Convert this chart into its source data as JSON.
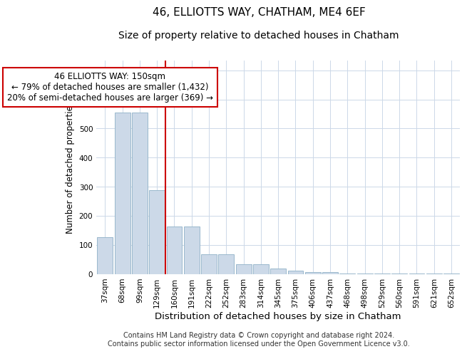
{
  "title1": "46, ELLIOTTS WAY, CHATHAM, ME4 6EF",
  "title2": "Size of property relative to detached houses in Chatham",
  "xlabel": "Distribution of detached houses by size in Chatham",
  "ylabel": "Number of detached properties",
  "categories": [
    "37sqm",
    "68sqm",
    "99sqm",
    "129sqm",
    "160sqm",
    "191sqm",
    "222sqm",
    "252sqm",
    "283sqm",
    "314sqm",
    "345sqm",
    "375sqm",
    "406sqm",
    "437sqm",
    "468sqm",
    "498sqm",
    "529sqm",
    "560sqm",
    "591sqm",
    "621sqm",
    "652sqm"
  ],
  "values": [
    127,
    555,
    555,
    287,
    163,
    163,
    68,
    68,
    33,
    33,
    18,
    10,
    5,
    5,
    2,
    2,
    1,
    1,
    1,
    1,
    1
  ],
  "bar_color": "#ccd9e8",
  "bar_edge_color": "#99b8cc",
  "vline_color": "#cc0000",
  "annotation_text": "46 ELLIOTTS WAY: 150sqm\n← 79% of detached houses are smaller (1,432)\n20% of semi-detached houses are larger (369) →",
  "annotation_box_color": "#ffffff",
  "annotation_box_edge": "#cc0000",
  "ylim": [
    0,
    735
  ],
  "yticks": [
    0,
    100,
    200,
    300,
    400,
    500,
    600,
    700
  ],
  "background_color": "#ffffff",
  "grid_color": "#ccd8e8",
  "footer_text": "Contains HM Land Registry data © Crown copyright and database right 2024.\nContains public sector information licensed under the Open Government Licence v3.0.",
  "title1_fontsize": 11,
  "title2_fontsize": 10,
  "xlabel_fontsize": 9.5,
  "ylabel_fontsize": 8.5,
  "tick_fontsize": 7.5,
  "annotation_fontsize": 8.5,
  "footer_fontsize": 7
}
